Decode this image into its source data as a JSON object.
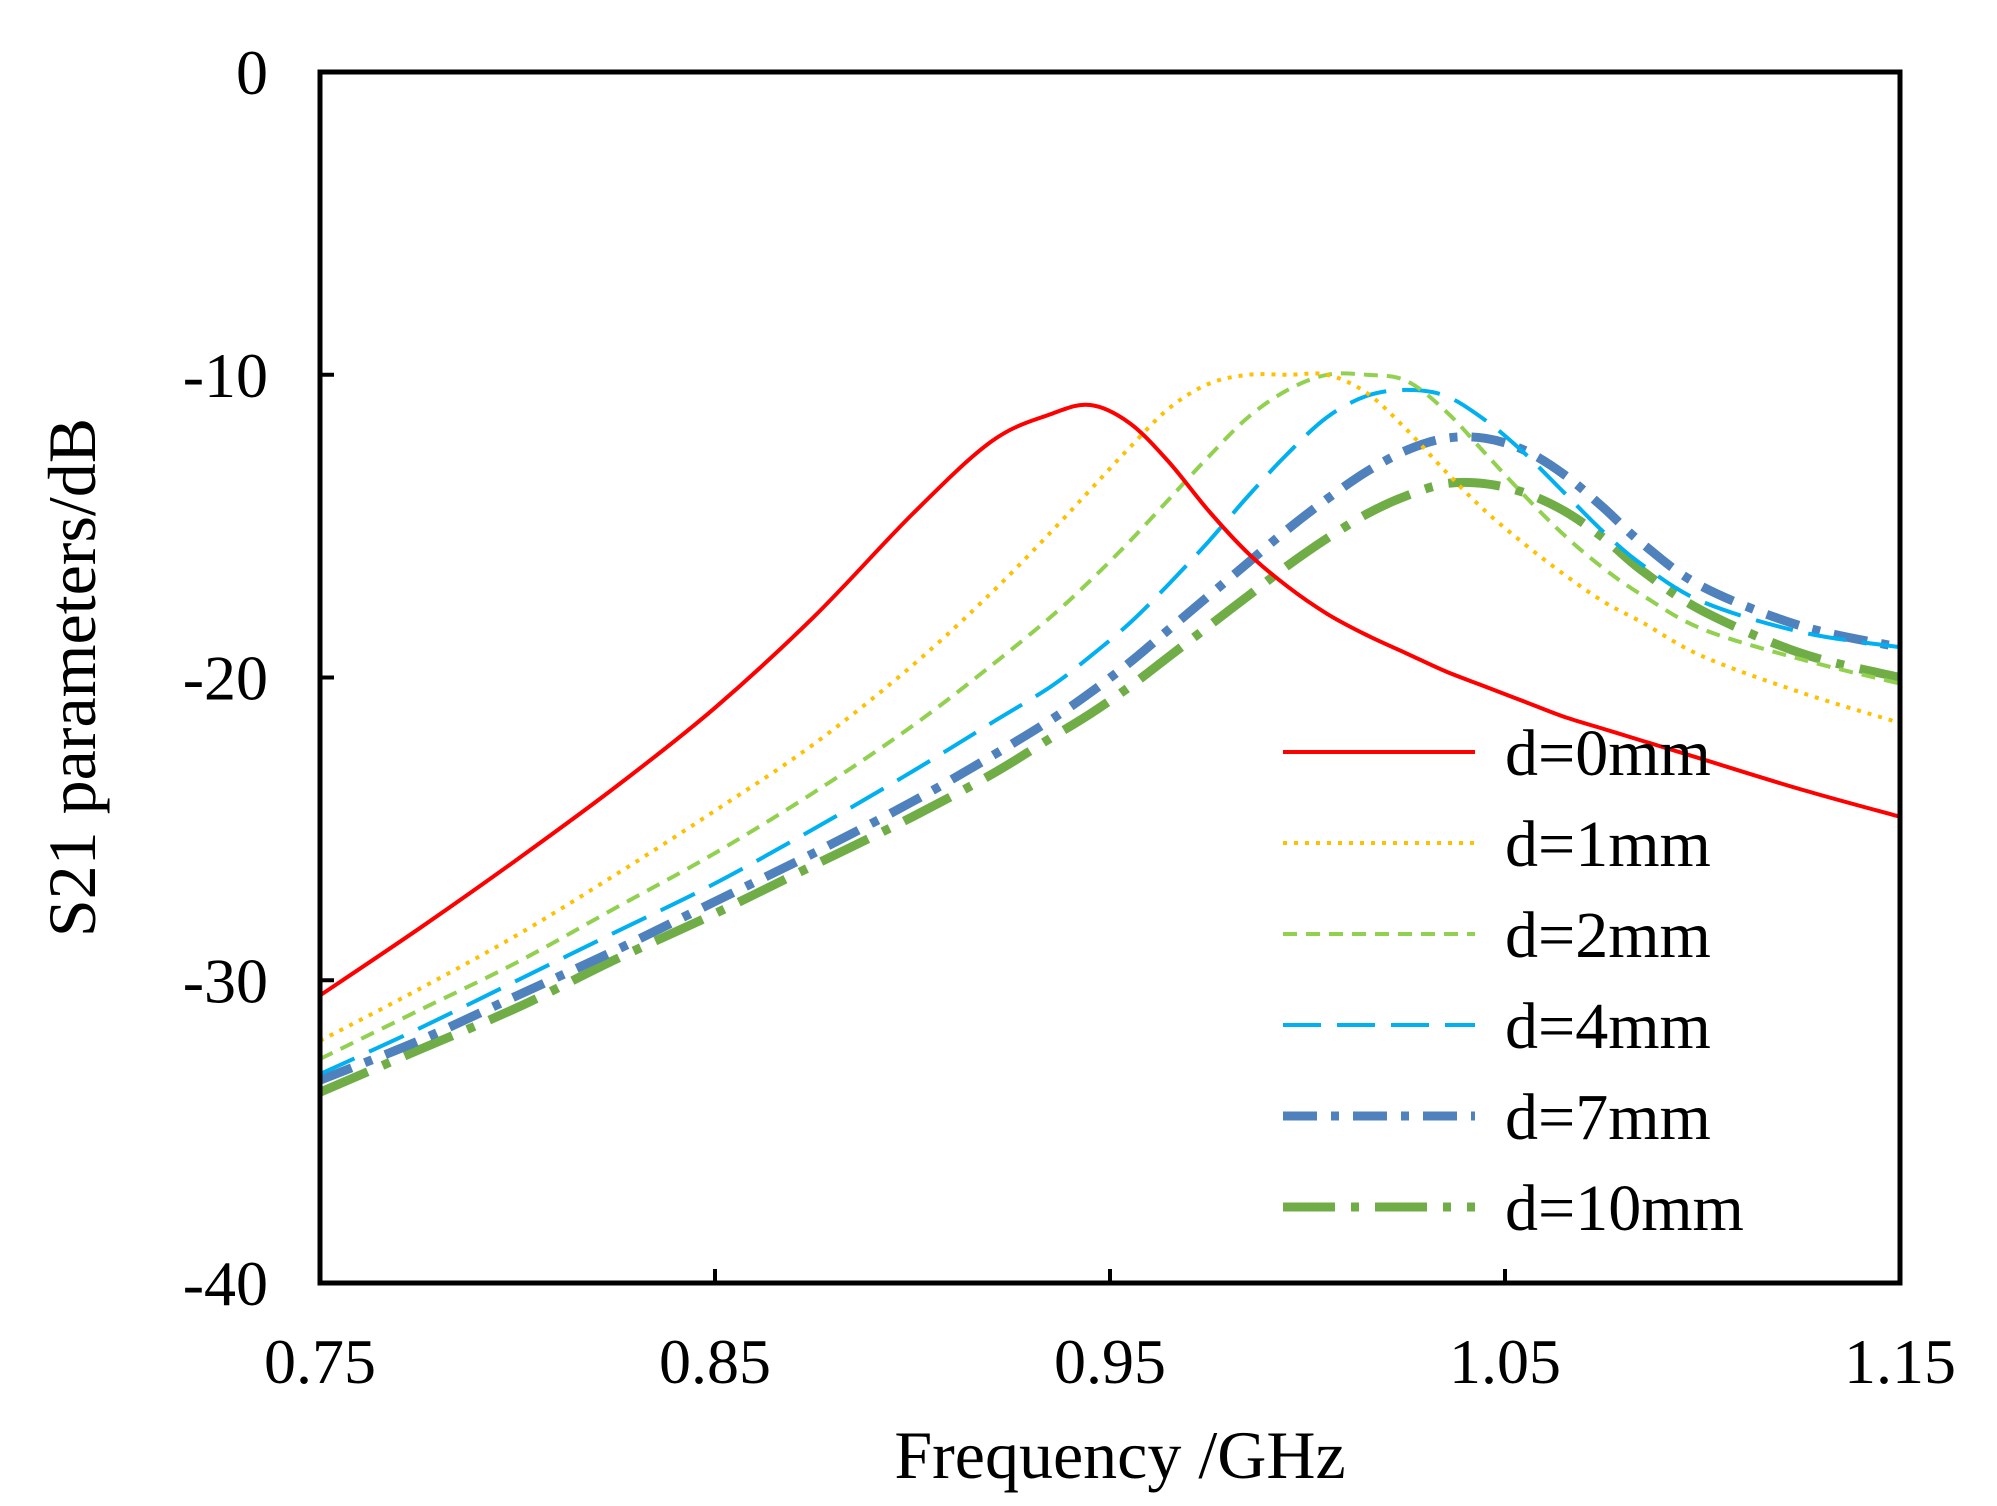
{
  "chart_data": {
    "type": "line",
    "title": "",
    "xlabel": "Frequency /GHz",
    "ylabel": "S21 parameters/dB",
    "xlim": [
      0.75,
      1.15
    ],
    "ylim": [
      -40,
      0
    ],
    "xticks": [
      0.75,
      0.85,
      0.95,
      1.05,
      1.15
    ],
    "xtick_labels": [
      "0.75",
      "0.85",
      "0.95",
      "1.05",
      "1.15"
    ],
    "yticks": [
      0,
      -10,
      -20,
      -30,
      -40
    ],
    "ytick_labels": [
      "0",
      "-10",
      "-20",
      "-30",
      "-40"
    ],
    "grid": false,
    "legend_position": "lower-right",
    "x": [
      0.75,
      0.775,
      0.8,
      0.825,
      0.85,
      0.875,
      0.9,
      0.92,
      0.935,
      0.945,
      0.955,
      0.965,
      0.975,
      0.985,
      0.995,
      1.005,
      1.015,
      1.025,
      1.035,
      1.045,
      1.055,
      1.065,
      1.075,
      1.085,
      1.1,
      1.125,
      1.15
    ],
    "series": [
      {
        "name": "d=0mm",
        "color": "#ff0000",
        "style": "solid",
        "values": [
          -30.5,
          -28.3,
          -26.0,
          -23.6,
          -21.0,
          -18.0,
          -14.6,
          -12.2,
          -11.3,
          -11.0,
          -11.6,
          -12.9,
          -14.5,
          -15.9,
          -17.0,
          -17.9,
          -18.6,
          -19.2,
          -19.8,
          -20.3,
          -20.8,
          -21.3,
          -21.7,
          -22.1,
          -22.7,
          -23.7,
          -24.6
        ]
      },
      {
        "name": "d=1mm",
        "color": "#ffc000",
        "style": "dotted",
        "values": [
          -32.0,
          -30.3,
          -28.5,
          -26.5,
          -24.4,
          -22.2,
          -19.6,
          -17.2,
          -15.2,
          -13.8,
          -12.4,
          -11.1,
          -10.3,
          -10.0,
          -10.0,
          -10.0,
          -10.6,
          -11.8,
          -13.2,
          -14.5,
          -15.6,
          -16.6,
          -17.5,
          -18.2,
          -19.3,
          -20.5,
          -21.5
        ]
      },
      {
        "name": "d=2mm",
        "color": "#92d050",
        "style": "short-dash",
        "values": [
          -32.6,
          -31.0,
          -29.4,
          -27.6,
          -25.8,
          -23.8,
          -21.6,
          -19.6,
          -18.0,
          -16.8,
          -15.5,
          -14.1,
          -12.7,
          -11.4,
          -10.5,
          -10.0,
          -10.0,
          -10.2,
          -11.2,
          -12.6,
          -14.0,
          -15.3,
          -16.4,
          -17.3,
          -18.4,
          -19.4,
          -20.2
        ]
      },
      {
        "name": "d=4mm",
        "color": "#00b0f0",
        "style": "long-dash",
        "values": [
          -33.1,
          -31.6,
          -30.0,
          -28.4,
          -26.8,
          -25.0,
          -23.1,
          -21.5,
          -20.3,
          -19.3,
          -18.2,
          -16.9,
          -15.5,
          -14.0,
          -12.6,
          -11.4,
          -10.7,
          -10.5,
          -10.7,
          -11.5,
          -12.6,
          -13.9,
          -15.2,
          -16.3,
          -17.5,
          -18.5,
          -19.0
        ]
      },
      {
        "name": "d=7mm",
        "color": "#4f81bd",
        "style": "dash-dot",
        "values": [
          -33.3,
          -32.0,
          -30.5,
          -29.0,
          -27.4,
          -25.8,
          -24.1,
          -22.6,
          -21.4,
          -20.5,
          -19.5,
          -18.4,
          -17.3,
          -16.2,
          -15.1,
          -14.1,
          -13.2,
          -12.5,
          -12.1,
          -12.1,
          -12.5,
          -13.3,
          -14.4,
          -15.6,
          -17.0,
          -18.3,
          -19.0
        ]
      },
      {
        "name": "d=10mm",
        "color": "#70ad47",
        "style": "long-dash-dot",
        "values": [
          -33.7,
          -32.3,
          -30.9,
          -29.3,
          -27.8,
          -26.2,
          -24.6,
          -23.2,
          -22.0,
          -21.2,
          -20.3,
          -19.3,
          -18.3,
          -17.3,
          -16.3,
          -15.4,
          -14.6,
          -14.0,
          -13.6,
          -13.6,
          -13.9,
          -14.5,
          -15.4,
          -16.5,
          -17.8,
          -19.2,
          -20.0
        ]
      }
    ]
  }
}
